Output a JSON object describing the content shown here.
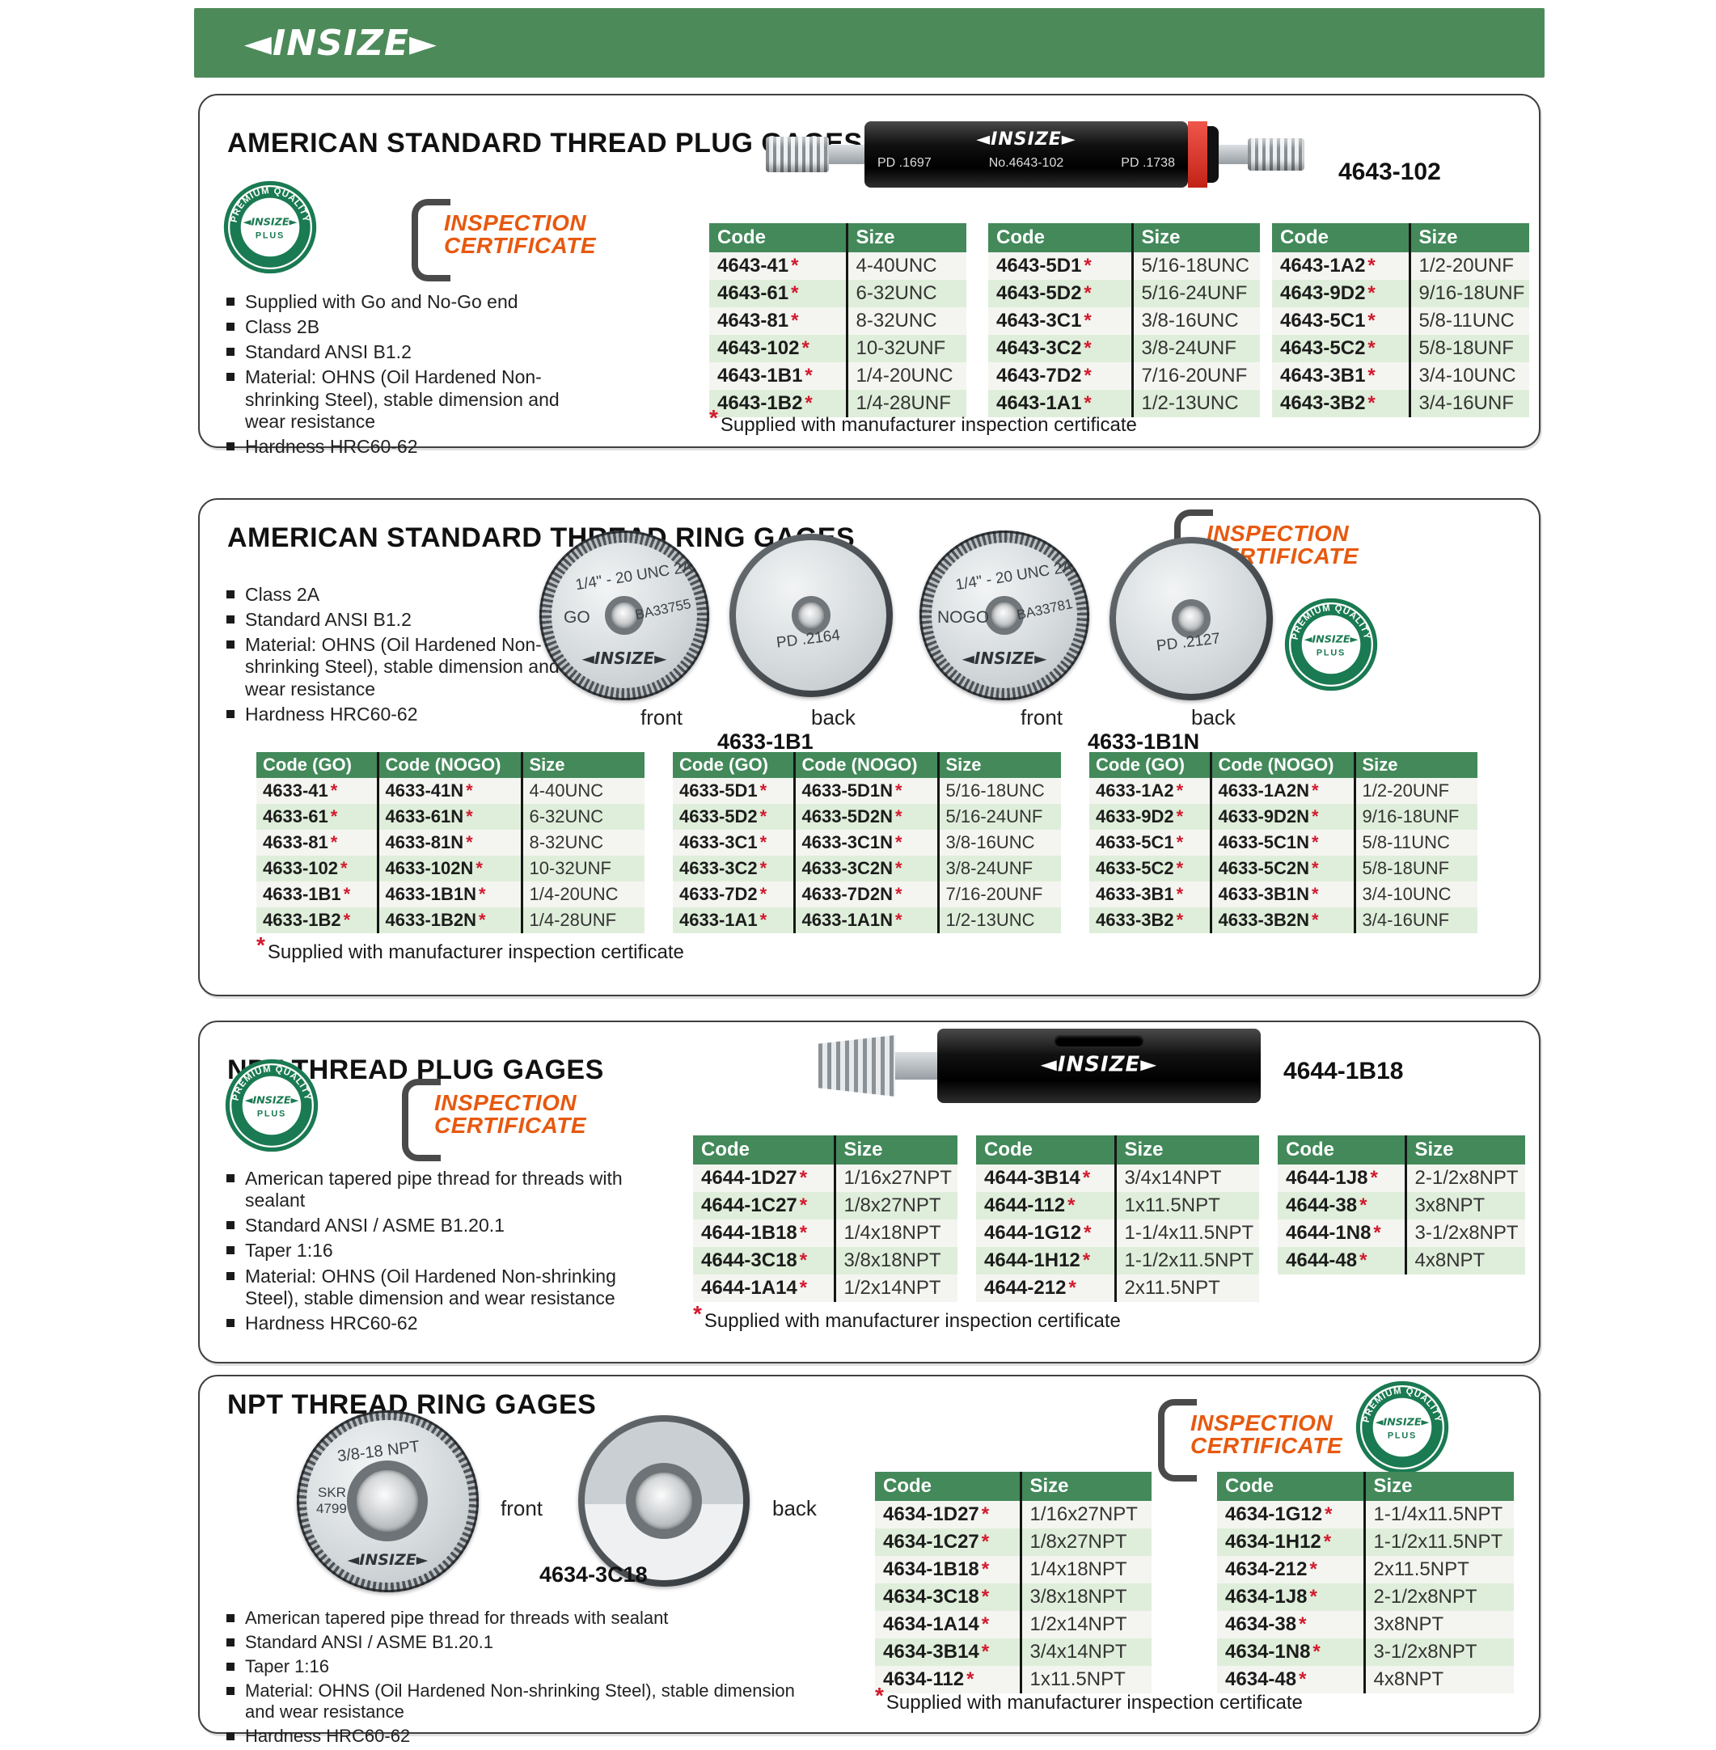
{
  "brand": {
    "name": "INSIZE",
    "logo": "◄INSIZE►"
  },
  "badges": {
    "premium_arc": "PREMIUM QUALITY",
    "premium_center": "◄INSIZE►",
    "premium_plus": "PLUS",
    "cert_line1": "INSPECTION",
    "cert_line2": "CERTIFICATE"
  },
  "colors": {
    "header_bar": "#4d8a59",
    "table_header": "#43895a",
    "row_green": "#dfeeda",
    "row_light": "#f4f5f1",
    "asterisk_red": "#d21a2e",
    "cert_orange": "#e7590f",
    "badge_green": "#1a7a52"
  },
  "sections": [
    {
      "title": "AMERICAN STANDARD THREAD PLUG GAGES",
      "bullets": [
        "Supplied with Go and No-Go end",
        "Class 2B",
        "Standard ANSI B1.2",
        "Material: OHNS (Oil Hardened Non-shrinking Steel), stable dimension and wear resistance",
        "Hardness HRC60-62"
      ],
      "figure": {
        "label": "4643-102",
        "pd_left": "PD .1697",
        "serial": "No.4643-102",
        "pd_right": "PD .1738"
      },
      "tables": [
        {
          "headers": [
            "Code",
            "Size"
          ],
          "rows": [
            [
              "4643-41*",
              "4-40UNC"
            ],
            [
              "4643-61*",
              "6-32UNC"
            ],
            [
              "4643-81*",
              "8-32UNC"
            ],
            [
              "4643-102*",
              "10-32UNF"
            ],
            [
              "4643-1B1*",
              "1/4-20UNC"
            ],
            [
              "4643-1B2*",
              "1/4-28UNF"
            ]
          ]
        },
        {
          "headers": [
            "Code",
            "Size"
          ],
          "rows": [
            [
              "4643-5D1*",
              "5/16-18UNC"
            ],
            [
              "4643-5D2*",
              "5/16-24UNF"
            ],
            [
              "4643-3C1*",
              "3/8-16UNC"
            ],
            [
              "4643-3C2*",
              "3/8-24UNF"
            ],
            [
              "4643-7D2*",
              "7/16-20UNF"
            ],
            [
              "4643-1A1*",
              "1/2-13UNC"
            ]
          ]
        },
        {
          "headers": [
            "Code",
            "Size"
          ],
          "rows": [
            [
              "4643-1A2*",
              "1/2-20UNF"
            ],
            [
              "4643-9D2*",
              "9/16-18UNF"
            ],
            [
              "4643-5C1*",
              "5/8-11UNC"
            ],
            [
              "4643-5C2*",
              "5/8-18UNF"
            ],
            [
              "4643-3B1*",
              "3/4-10UNC"
            ],
            [
              "4643-3B2*",
              "3/4-16UNF"
            ]
          ]
        }
      ],
      "footnote": "Supplied with manufacturer inspection certificate"
    },
    {
      "title": "AMERICAN STANDARD THREAD RING GAGES",
      "bullets": [
        "Class 2A",
        "Standard ANSI B1.2",
        "Material: OHNS (Oil Hardened Non-shrinking Steel), stable dimension and wear resistance",
        "Hardness HRC60-62"
      ],
      "figures": [
        {
          "top": "1/4\" - 20 UNC 2A",
          "side": "GO",
          "serial": "BA33755",
          "back": "PD .2164",
          "front_label": "front",
          "back_label": "back",
          "caption": "4633-1B1"
        },
        {
          "top": "1/4\" - 20 UNC 2A",
          "side": "NOGO",
          "serial": "BA33781",
          "back": "PD .2127",
          "front_label": "front",
          "back_label": "back",
          "caption": "4633-1B1N"
        }
      ],
      "tables": [
        {
          "headers": [
            "Code (GO)",
            "Code (NOGO)",
            "Size"
          ],
          "rows": [
            [
              "4633-41*",
              "4633-41N*",
              "4-40UNC"
            ],
            [
              "4633-61*",
              "4633-61N*",
              "6-32UNC"
            ],
            [
              "4633-81*",
              "4633-81N*",
              "8-32UNC"
            ],
            [
              "4633-102*",
              "4633-102N*",
              "10-32UNF"
            ],
            [
              "4633-1B1*",
              "4633-1B1N*",
              "1/4-20UNC"
            ],
            [
              "4633-1B2*",
              "4633-1B2N*",
              "1/4-28UNF"
            ]
          ]
        },
        {
          "headers": [
            "Code (GO)",
            "Code (NOGO)",
            "Size"
          ],
          "rows": [
            [
              "4633-5D1*",
              "4633-5D1N*",
              "5/16-18UNC"
            ],
            [
              "4633-5D2*",
              "4633-5D2N*",
              "5/16-24UNF"
            ],
            [
              "4633-3C1*",
              "4633-3C1N*",
              "3/8-16UNC"
            ],
            [
              "4633-3C2*",
              "4633-3C2N*",
              "3/8-24UNF"
            ],
            [
              "4633-7D2*",
              "4633-7D2N*",
              "7/16-20UNF"
            ],
            [
              "4633-1A1*",
              "4633-1A1N*",
              "1/2-13UNC"
            ]
          ]
        },
        {
          "headers": [
            "Code (GO)",
            "Code (NOGO)",
            "Size"
          ],
          "rows": [
            [
              "4633-1A2*",
              "4633-1A2N*",
              "1/2-20UNF"
            ],
            [
              "4633-9D2*",
              "4633-9D2N*",
              "9/16-18UNF"
            ],
            [
              "4633-5C1*",
              "4633-5C1N*",
              "5/8-11UNC"
            ],
            [
              "4633-5C2*",
              "4633-5C2N*",
              "5/8-18UNF"
            ],
            [
              "4633-3B1*",
              "4633-3B1N*",
              "3/4-10UNC"
            ],
            [
              "4633-3B2*",
              "4633-3B2N*",
              "3/4-16UNF"
            ]
          ]
        }
      ],
      "footnote": "Supplied with manufacturer inspection certificate"
    },
    {
      "title": "NPT THREAD PLUG GAGES",
      "bullets": [
        "American tapered pipe thread for threads with sealant",
        "Standard ANSI / ASME B1.20.1",
        "Taper 1:16",
        "Material: OHNS (Oil Hardened Non-shrinking Steel), stable dimension and wear resistance",
        "Hardness HRC60-62"
      ],
      "figure": {
        "label": "4644-1B18"
      },
      "tables": [
        {
          "headers": [
            "Code",
            "Size"
          ],
          "rows": [
            [
              "4644-1D27*",
              "1/16x27NPT"
            ],
            [
              "4644-1C27*",
              "1/8x27NPT"
            ],
            [
              "4644-1B18*",
              "1/4x18NPT"
            ],
            [
              "4644-3C18*",
              "3/8x18NPT"
            ],
            [
              "4644-1A14*",
              "1/2x14NPT"
            ]
          ]
        },
        {
          "headers": [
            "Code",
            "Size"
          ],
          "rows": [
            [
              "4644-3B14*",
              "3/4x14NPT"
            ],
            [
              "4644-112*",
              "1x11.5NPT"
            ],
            [
              "4644-1G12*",
              "1-1/4x11.5NPT"
            ],
            [
              "4644-1H12*",
              "1-1/2x11.5NPT"
            ],
            [
              "4644-212*",
              "2x11.5NPT"
            ]
          ]
        },
        {
          "headers": [
            "Code",
            "Size"
          ],
          "rows": [
            [
              "4644-1J8*",
              "2-1/2x8NPT"
            ],
            [
              "4644-38*",
              "3x8NPT"
            ],
            [
              "4644-1N8*",
              "3-1/2x8NPT"
            ],
            [
              "4644-48*",
              "4x8NPT"
            ]
          ]
        }
      ],
      "footnote": "Supplied with manufacturer inspection certificate"
    },
    {
      "title": "NPT THREAD RING GAGES",
      "bullets": [
        "American tapered pipe thread for threads with sealant",
        "Standard ANSI / ASME B1.20.1",
        "Taper 1:16",
        "Material: OHNS (Oil Hardened Non-shrinking Steel), stable dimension and wear resistance",
        "Hardness HRC60-62"
      ],
      "figure": {
        "top": "3/8-18 NPT",
        "side1": "SKR",
        "side2": "4799",
        "front_label": "front",
        "back_label": "back",
        "caption": "4634-3C18"
      },
      "tables": [
        {
          "headers": [
            "Code",
            "Size"
          ],
          "rows": [
            [
              "4634-1D27*",
              "1/16x27NPT"
            ],
            [
              "4634-1C27*",
              "1/8x27NPT"
            ],
            [
              "4634-1B18*",
              "1/4x18NPT"
            ],
            [
              "4634-3C18*",
              "3/8x18NPT"
            ],
            [
              "4634-1A14*",
              "1/2x14NPT"
            ],
            [
              "4634-3B14*",
              "3/4x14NPT"
            ],
            [
              "4634-112*",
              "1x11.5NPT"
            ]
          ]
        },
        {
          "headers": [
            "Code",
            "Size"
          ],
          "rows": [
            [
              "4634-1G12*",
              "1-1/4x11.5NPT"
            ],
            [
              "4634-1H12*",
              "1-1/2x11.5NPT"
            ],
            [
              "4634-212*",
              "2x11.5NPT"
            ],
            [
              "4634-1J8*",
              "2-1/2x8NPT"
            ],
            [
              "4634-38*",
              "3x8NPT"
            ],
            [
              "4634-1N8*",
              "3-1/2x8NPT"
            ],
            [
              "4634-48*",
              "4x8NPT"
            ]
          ]
        }
      ],
      "footnote": "Supplied with manufacturer inspection certificate"
    }
  ]
}
